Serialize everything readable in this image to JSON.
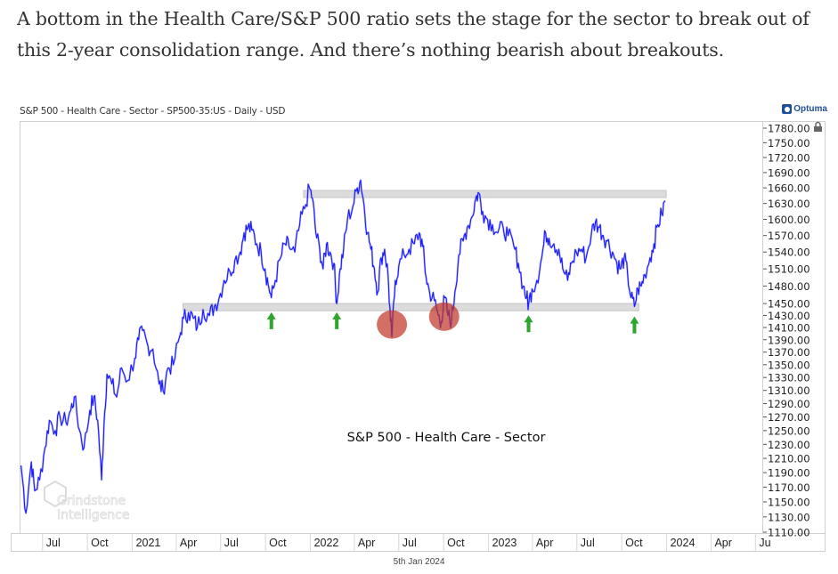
{
  "caption": "A bottom in the Health Care/S&P 500 ratio sets the stage for the sector to break out of this 2-year consolidation range. And there’s nothing bearish about breakouts.",
  "brand": "Optuma",
  "date_stamp": "5th Jan 2024",
  "watermark": {
    "line1": "Grindstone",
    "line2": "Intelligence"
  },
  "colors": {
    "series": "#1a1aff",
    "band": "#dcdcdc",
    "arrow": "#2ea52e",
    "circle": "#c0392b"
  },
  "chart_data": {
    "type": "line",
    "title": "S&P 500 - Health Care - Sector - SP500-35:US - Daily - USD",
    "annotation": "S&P 500 - Health Care - Sector",
    "xlabel": "",
    "ylabel": "",
    "y_scale": "log",
    "ylim": [
      1110,
      1780
    ],
    "grid": false,
    "legend": "none",
    "y_ticks": [
      1780,
      1750,
      1720,
      1690,
      1660,
      1630,
      1600,
      1570,
      1540,
      1510,
      1480,
      1450,
      1430,
      1410,
      1390,
      1370,
      1350,
      1330,
      1310,
      1290,
      1270,
      1250,
      1230,
      1210,
      1190,
      1170,
      1150,
      1130,
      1110
    ],
    "y_tick_labels": [
      "1780.00",
      "1750.00",
      "1720.00",
      "1690.00",
      "1660.00",
      "1630.00",
      "1600.00",
      "1570.00",
      "1540.00",
      "1510.00",
      "1480.00",
      "1450.00",
      "1430.00",
      "1410.00",
      "1390.00",
      "1370.00",
      "1350.00",
      "1330.00",
      "1310.00",
      "1290.00",
      "1270.00",
      "1250.00",
      "1230.00",
      "1210.00",
      "1190.00",
      "1170.00",
      "1150.00",
      "1130.00",
      "1110.00"
    ],
    "x_range": [
      "2020-05-15",
      "2024-07-15"
    ],
    "x_ticks": [
      {
        "label": "Jul",
        "date": "2020-07-01"
      },
      {
        "label": "Oct",
        "date": "2020-10-01"
      },
      {
        "label": "2021",
        "date": "2021-01-01"
      },
      {
        "label": "Apr",
        "date": "2021-04-01"
      },
      {
        "label": "Jul",
        "date": "2021-07-01"
      },
      {
        "label": "Oct",
        "date": "2021-10-01"
      },
      {
        "label": "2022",
        "date": "2022-01-01"
      },
      {
        "label": "Apr",
        "date": "2022-04-01"
      },
      {
        "label": "Jul",
        "date": "2022-07-01"
      },
      {
        "label": "Oct",
        "date": "2022-10-01"
      },
      {
        "label": "2023",
        "date": "2023-01-01"
      },
      {
        "label": "Apr",
        "date": "2023-04-01"
      },
      {
        "label": "Jul",
        "date": "2023-07-01"
      },
      {
        "label": "Oct",
        "date": "2023-10-01"
      },
      {
        "label": "2024",
        "date": "2024-01-01"
      },
      {
        "label": "Apr",
        "date": "2024-04-01"
      },
      {
        "label": "Ju",
        "date": "2024-07-01"
      }
    ],
    "series": [
      {
        "name": "S&P 500 - Health Care - Sector",
        "points": [
          [
            "2020-05-18",
            1200
          ],
          [
            "2020-05-28",
            1135
          ],
          [
            "2020-06-08",
            1205
          ],
          [
            "2020-06-15",
            1165
          ],
          [
            "2020-06-25",
            1180
          ],
          [
            "2020-07-06",
            1225
          ],
          [
            "2020-07-15",
            1265
          ],
          [
            "2020-07-27",
            1250
          ],
          [
            "2020-08-06",
            1270
          ],
          [
            "2020-08-18",
            1262
          ],
          [
            "2020-08-28",
            1280
          ],
          [
            "2020-09-04",
            1300
          ],
          [
            "2020-09-15",
            1250
          ],
          [
            "2020-09-24",
            1225
          ],
          [
            "2020-10-06",
            1280
          ],
          [
            "2020-10-14",
            1300
          ],
          [
            "2020-10-22",
            1265
          ],
          [
            "2020-10-30",
            1180
          ],
          [
            "2020-11-04",
            1260
          ],
          [
            "2020-11-10",
            1335
          ],
          [
            "2020-11-20",
            1320
          ],
          [
            "2020-11-30",
            1300
          ],
          [
            "2020-12-10",
            1345
          ],
          [
            "2020-12-22",
            1325
          ],
          [
            "2021-01-06",
            1360
          ],
          [
            "2021-01-14",
            1390
          ],
          [
            "2021-01-22",
            1405
          ],
          [
            "2021-02-02",
            1380
          ],
          [
            "2021-02-12",
            1375
          ],
          [
            "2021-02-25",
            1320
          ],
          [
            "2021-03-05",
            1310
          ],
          [
            "2021-03-15",
            1345
          ],
          [
            "2021-03-26",
            1350
          ],
          [
            "2021-04-08",
            1395
          ],
          [
            "2021-04-16",
            1425
          ],
          [
            "2021-04-26",
            1435
          ],
          [
            "2021-05-06",
            1425
          ],
          [
            "2021-05-14",
            1410
          ],
          [
            "2021-05-26",
            1440
          ],
          [
            "2021-06-08",
            1430
          ],
          [
            "2021-06-18",
            1445
          ],
          [
            "2021-06-28",
            1460
          ],
          [
            "2021-07-08",
            1490
          ],
          [
            "2021-07-20",
            1505
          ],
          [
            "2021-07-30",
            1525
          ],
          [
            "2021-08-10",
            1540
          ],
          [
            "2021-08-18",
            1575
          ],
          [
            "2021-08-26",
            1585
          ],
          [
            "2021-09-03",
            1580
          ],
          [
            "2021-09-13",
            1555
          ],
          [
            "2021-09-22",
            1540
          ],
          [
            "2021-09-30",
            1510
          ],
          [
            "2021-10-06",
            1485
          ],
          [
            "2021-10-13",
            1460
          ],
          [
            "2021-10-21",
            1490
          ],
          [
            "2021-11-01",
            1530
          ],
          [
            "2021-11-10",
            1555
          ],
          [
            "2021-11-18",
            1550
          ],
          [
            "2021-11-30",
            1540
          ],
          [
            "2021-12-10",
            1590
          ],
          [
            "2021-12-20",
            1620
          ],
          [
            "2021-12-30",
            1660
          ],
          [
            "2022-01-05",
            1640
          ],
          [
            "2022-01-12",
            1575
          ],
          [
            "2022-01-20",
            1545
          ],
          [
            "2022-01-27",
            1510
          ],
          [
            "2022-02-03",
            1555
          ],
          [
            "2022-02-10",
            1540
          ],
          [
            "2022-02-18",
            1520
          ],
          [
            "2022-02-24",
            1450
          ],
          [
            "2022-03-03",
            1510
          ],
          [
            "2022-03-10",
            1545
          ],
          [
            "2022-03-18",
            1600
          ],
          [
            "2022-03-29",
            1625
          ],
          [
            "2022-04-07",
            1660
          ],
          [
            "2022-04-14",
            1675
          ],
          [
            "2022-04-21",
            1625
          ],
          [
            "2022-04-28",
            1575
          ],
          [
            "2022-05-05",
            1545
          ],
          [
            "2022-05-12",
            1510
          ],
          [
            "2022-05-19",
            1470
          ],
          [
            "2022-05-26",
            1530
          ],
          [
            "2022-06-02",
            1545
          ],
          [
            "2022-06-09",
            1500
          ],
          [
            "2022-06-14",
            1420
          ],
          [
            "2022-06-17",
            1395
          ],
          [
            "2022-06-24",
            1490
          ],
          [
            "2022-07-01",
            1515
          ],
          [
            "2022-07-12",
            1535
          ],
          [
            "2022-07-22",
            1545
          ],
          [
            "2022-08-02",
            1555
          ],
          [
            "2022-08-12",
            1575
          ],
          [
            "2022-08-19",
            1550
          ],
          [
            "2022-08-26",
            1495
          ],
          [
            "2022-09-02",
            1470
          ],
          [
            "2022-09-12",
            1455
          ],
          [
            "2022-09-20",
            1430
          ],
          [
            "2022-09-26",
            1420
          ],
          [
            "2022-10-03",
            1460
          ],
          [
            "2022-10-10",
            1430
          ],
          [
            "2022-10-17",
            1420
          ],
          [
            "2022-10-24",
            1470
          ],
          [
            "2022-11-01",
            1535
          ],
          [
            "2022-11-10",
            1560
          ],
          [
            "2022-11-18",
            1585
          ],
          [
            "2022-11-28",
            1605
          ],
          [
            "2022-12-06",
            1640
          ],
          [
            "2022-12-12",
            1650
          ],
          [
            "2022-12-20",
            1615
          ],
          [
            "2022-12-30",
            1600
          ],
          [
            "2023-01-09",
            1590
          ],
          [
            "2023-01-20",
            1575
          ],
          [
            "2023-01-31",
            1585
          ],
          [
            "2023-02-10",
            1570
          ],
          [
            "2023-02-22",
            1550
          ],
          [
            "2023-03-03",
            1520
          ],
          [
            "2023-03-13",
            1480
          ],
          [
            "2023-03-20",
            1460
          ],
          [
            "2023-03-24",
            1448
          ],
          [
            "2023-03-31",
            1475
          ],
          [
            "2023-04-10",
            1490
          ],
          [
            "2023-04-20",
            1530
          ],
          [
            "2023-04-28",
            1575
          ],
          [
            "2023-05-05",
            1565
          ],
          [
            "2023-05-15",
            1555
          ],
          [
            "2023-05-25",
            1545
          ],
          [
            "2023-06-02",
            1510
          ],
          [
            "2023-06-12",
            1490
          ],
          [
            "2023-06-20",
            1520
          ],
          [
            "2023-06-30",
            1540
          ],
          [
            "2023-07-10",
            1545
          ],
          [
            "2023-07-20",
            1530
          ],
          [
            "2023-07-31",
            1575
          ],
          [
            "2023-08-08",
            1595
          ],
          [
            "2023-08-16",
            1585
          ],
          [
            "2023-08-24",
            1570
          ],
          [
            "2023-09-01",
            1560
          ],
          [
            "2023-09-12",
            1540
          ],
          [
            "2023-09-21",
            1520
          ],
          [
            "2023-09-29",
            1510
          ],
          [
            "2023-10-06",
            1530
          ],
          [
            "2023-10-13",
            1500
          ],
          [
            "2023-10-20",
            1460
          ],
          [
            "2023-10-27",
            1445
          ],
          [
            "2023-11-03",
            1475
          ],
          [
            "2023-11-10",
            1480
          ],
          [
            "2023-11-17",
            1500
          ],
          [
            "2023-11-28",
            1530
          ],
          [
            "2023-12-06",
            1555
          ],
          [
            "2023-12-14",
            1590
          ],
          [
            "2023-12-22",
            1610
          ],
          [
            "2023-12-29",
            1635
          ]
        ]
      }
    ],
    "bands": [
      {
        "name": "resistance",
        "from": 1645,
        "to": 1655,
        "start": "2021-12-18",
        "end": "2023-12-31"
      },
      {
        "name": "support",
        "from": 1440,
        "to": 1450,
        "start": "2021-04-15",
        "end": "2023-11-05"
      }
    ],
    "markers": [
      {
        "type": "arrow-up",
        "date": "2021-10-13",
        "value": 1425
      },
      {
        "type": "arrow-up",
        "date": "2022-02-24",
        "value": 1425
      },
      {
        "type": "arrow-up",
        "date": "2023-03-24",
        "value": 1420
      },
      {
        "type": "arrow-up",
        "date": "2023-10-27",
        "value": 1418
      },
      {
        "type": "circle",
        "date": "2022-06-17",
        "value": 1415
      },
      {
        "type": "circle",
        "date": "2022-10-02",
        "value": 1428
      }
    ]
  }
}
